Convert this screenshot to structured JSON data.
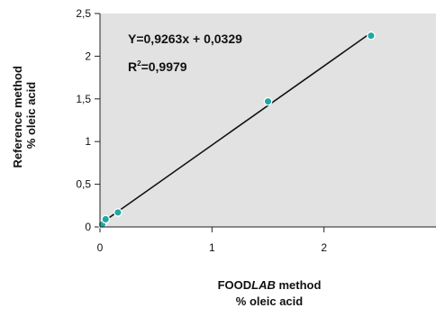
{
  "chart_data": {
    "type": "scatter",
    "title": "",
    "xlabel": "",
    "ylabel": "",
    "xlabel_lines": [
      {
        "parts": [
          "FOOD",
          "LAB",
          " method"
        ],
        "italic": [
          false,
          true,
          false
        ]
      },
      {
        "parts": [
          "% oleic acid"
        ],
        "italic": [
          false
        ]
      }
    ],
    "ylabel_lines": [
      "Reference method",
      "% oleic acid"
    ],
    "xlim": [
      0,
      3
    ],
    "ylim": [
      0,
      2.5
    ],
    "x_ticks": [
      0,
      1,
      2
    ],
    "x_tick_labels": [
      "0",
      "1",
      "2"
    ],
    "y_ticks": [
      0,
      0.5,
      1,
      1.5,
      2,
      2.5
    ],
    "y_tick_labels": [
      "0",
      "0,5",
      "1",
      "1,5",
      "2",
      "2,5"
    ],
    "grid": false,
    "legend": "none",
    "points": [
      {
        "x": 0.02,
        "y": 0.03
      },
      {
        "x": 0.05,
        "y": 0.09
      },
      {
        "x": 0.16,
        "y": 0.17
      },
      {
        "x": 1.5,
        "y": 1.47
      },
      {
        "x": 2.42,
        "y": 2.24
      }
    ],
    "trendline": {
      "slope": 0.9263,
      "intercept": 0.0329,
      "x_range": [
        0,
        2.42
      ]
    },
    "annotations": {
      "equation": "Y=0,9263x + 0,0329",
      "r2_prefix": "R",
      "r2_superscript": "2",
      "r2_value": "=0,9979"
    },
    "colors": {
      "plot_background": "#e2e2e2",
      "marker_fill": "#1fa7a3",
      "marker_stroke": "#ffffff",
      "trendline": "#111111",
      "axis": "#222222",
      "text": "#111111"
    }
  }
}
